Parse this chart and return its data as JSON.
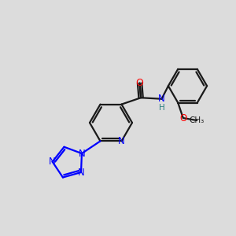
{
  "background_color": "#dcdcdc",
  "bond_color": "#1a1a1a",
  "N_color": "#0000ff",
  "O_color": "#ff0000",
  "NH_color": "#0000ff",
  "H_color": "#2a8080",
  "line_width": 1.6,
  "figsize": [
    3.0,
    3.0
  ],
  "dpi": 100,
  "xlim": [
    0,
    10
  ],
  "ylim": [
    0,
    10
  ]
}
